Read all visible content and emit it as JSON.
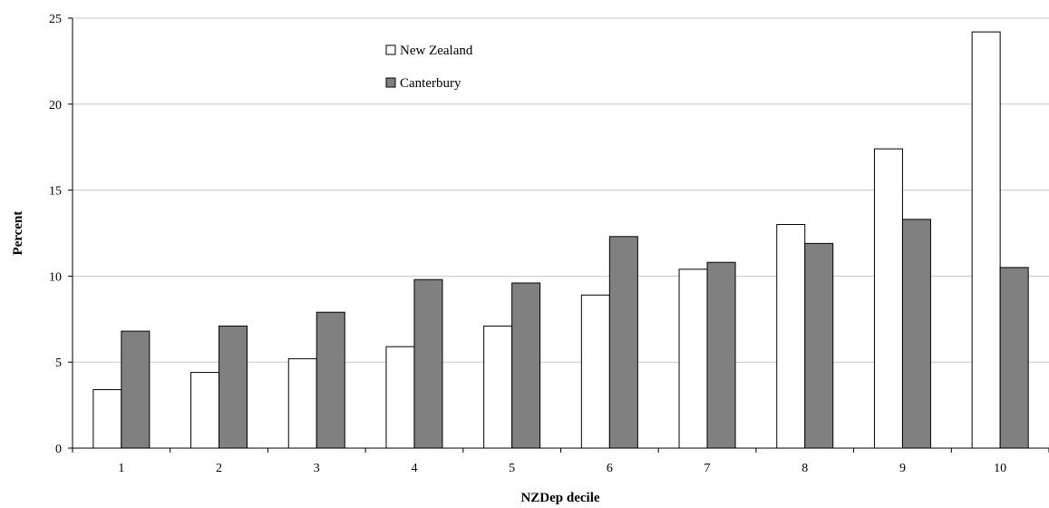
{
  "chart_data": {
    "type": "bar",
    "categories": [
      "1",
      "2",
      "3",
      "4",
      "5",
      "6",
      "7",
      "8",
      "9",
      "10"
    ],
    "series": [
      {
        "name": "New Zealand",
        "color": "#ffffff",
        "values": [
          3.4,
          4.4,
          5.2,
          5.9,
          7.1,
          8.9,
          10.4,
          13.0,
          17.4,
          24.2
        ]
      },
      {
        "name": "Canterbury",
        "color": "#808080",
        "values": [
          6.8,
          7.1,
          7.9,
          9.8,
          9.6,
          12.3,
          10.8,
          11.9,
          13.3,
          10.5
        ]
      }
    ],
    "xlabel": "NZDep decile",
    "ylabel": "Percent",
    "ylim": [
      0,
      25
    ],
    "yticks": [
      0,
      5,
      10,
      15,
      20,
      25
    ],
    "grid": true,
    "legend_position": "top-center"
  }
}
